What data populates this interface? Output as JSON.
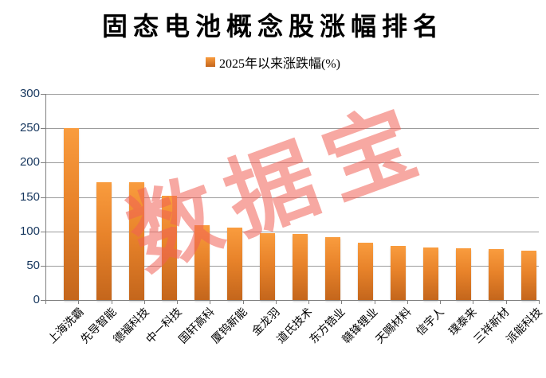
{
  "title": "固态电池概念股涨幅排名",
  "legend": {
    "label": "2025年以来涨跌幅(%)"
  },
  "watermark": "数据宝",
  "colors": {
    "bar_top": "#F99C3E",
    "bar_mid": "#E8832A",
    "bar_bottom": "#C4661C",
    "gridline": "#9C9C9C",
    "axis": "#7F7F7F",
    "y_label": "#17375E",
    "watermark_red": "rgba(240,96,85,0.55)"
  },
  "chart_data": {
    "type": "bar",
    "title": "固态电池概念股涨幅排名",
    "legend_entries": [
      "2025年以来涨跌幅(%)"
    ],
    "legend_position": "top",
    "grid": true,
    "xlabel": "",
    "ylabel": "",
    "ylim": [
      0,
      300
    ],
    "ytick_step": 50,
    "categories": [
      "上海洗霸",
      "先导智能",
      "德福科技",
      "中一科技",
      "国轩高科",
      "厦钨新能",
      "金龙羽",
      "道氏技术",
      "东方锆业",
      "赣锋锂业",
      "天赐材料",
      "信宇人",
      "璞泰来",
      "三祥新材",
      "派能科技"
    ],
    "values": [
      250,
      172,
      171,
      152,
      109,
      106,
      97,
      96,
      91,
      83,
      79,
      76,
      75,
      74,
      72
    ]
  }
}
